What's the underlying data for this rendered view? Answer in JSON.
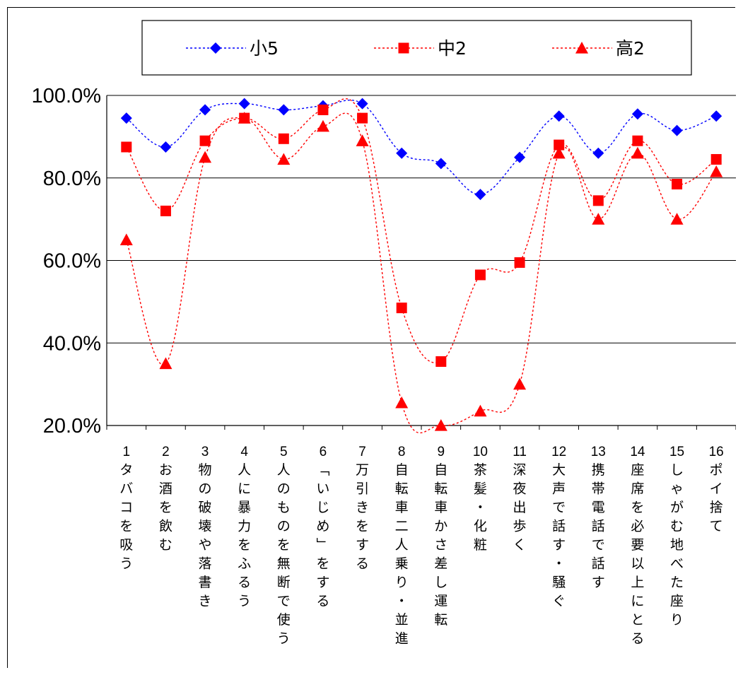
{
  "chart_data": {
    "type": "line",
    "title": "",
    "xlabel": "",
    "ylabel": "",
    "ylim": [
      20,
      100
    ],
    "yticks": [
      "100.0%",
      "80.0%",
      "60.0%",
      "40.0%",
      "20.0%"
    ],
    "grid": "horizontal",
    "legend_position": "top",
    "categories": [
      {
        "num": "1",
        "label": "タバコを吸う"
      },
      {
        "num": "2",
        "label": "お酒を飲む"
      },
      {
        "num": "3",
        "label": "物の破壊や落書き"
      },
      {
        "num": "4",
        "label": "人に暴力をふるう"
      },
      {
        "num": "5",
        "label": "人のものを無断で使う"
      },
      {
        "num": "6",
        "label": "「いじめ」をする"
      },
      {
        "num": "7",
        "label": "万引きをする"
      },
      {
        "num": "8",
        "label": "自転車二人乗り・並進"
      },
      {
        "num": "9",
        "label": "自転車かさ差し運転"
      },
      {
        "num": "10",
        "label": "茶髪・化粧"
      },
      {
        "num": "11",
        "label": "深夜出歩く"
      },
      {
        "num": "12",
        "label": "大声で話す・騒ぐ"
      },
      {
        "num": "13",
        "label": "携帯電話で話す"
      },
      {
        "num": "14",
        "label": "座席を必要以上にとる"
      },
      {
        "num": "15",
        "label": "しゃがむ地べた座り"
      },
      {
        "num": "16",
        "label": "ポイ捨て"
      }
    ],
    "series": [
      {
        "name": "小5",
        "color": "#0000ff",
        "marker": "diamond",
        "values": [
          94.5,
          87.5,
          96.5,
          98.0,
          96.5,
          97.5,
          98.0,
          86.0,
          83.5,
          76.0,
          85.0,
          95.0,
          86.0,
          95.5,
          91.5,
          95.0
        ]
      },
      {
        "name": "中2",
        "color": "#ff0000",
        "marker": "square",
        "values": [
          87.5,
          72.0,
          89.0,
          94.5,
          89.5,
          96.5,
          94.5,
          48.5,
          35.5,
          56.5,
          59.5,
          88.0,
          74.5,
          89.0,
          78.5,
          84.5
        ]
      },
      {
        "name": "高2",
        "color": "#ff0000",
        "marker": "triangle",
        "values": [
          65.0,
          35.0,
          85.0,
          94.5,
          84.5,
          92.5,
          89.0,
          25.5,
          20.0,
          23.5,
          30.0,
          86.0,
          70.0,
          86.0,
          70.0,
          81.5
        ]
      }
    ]
  }
}
